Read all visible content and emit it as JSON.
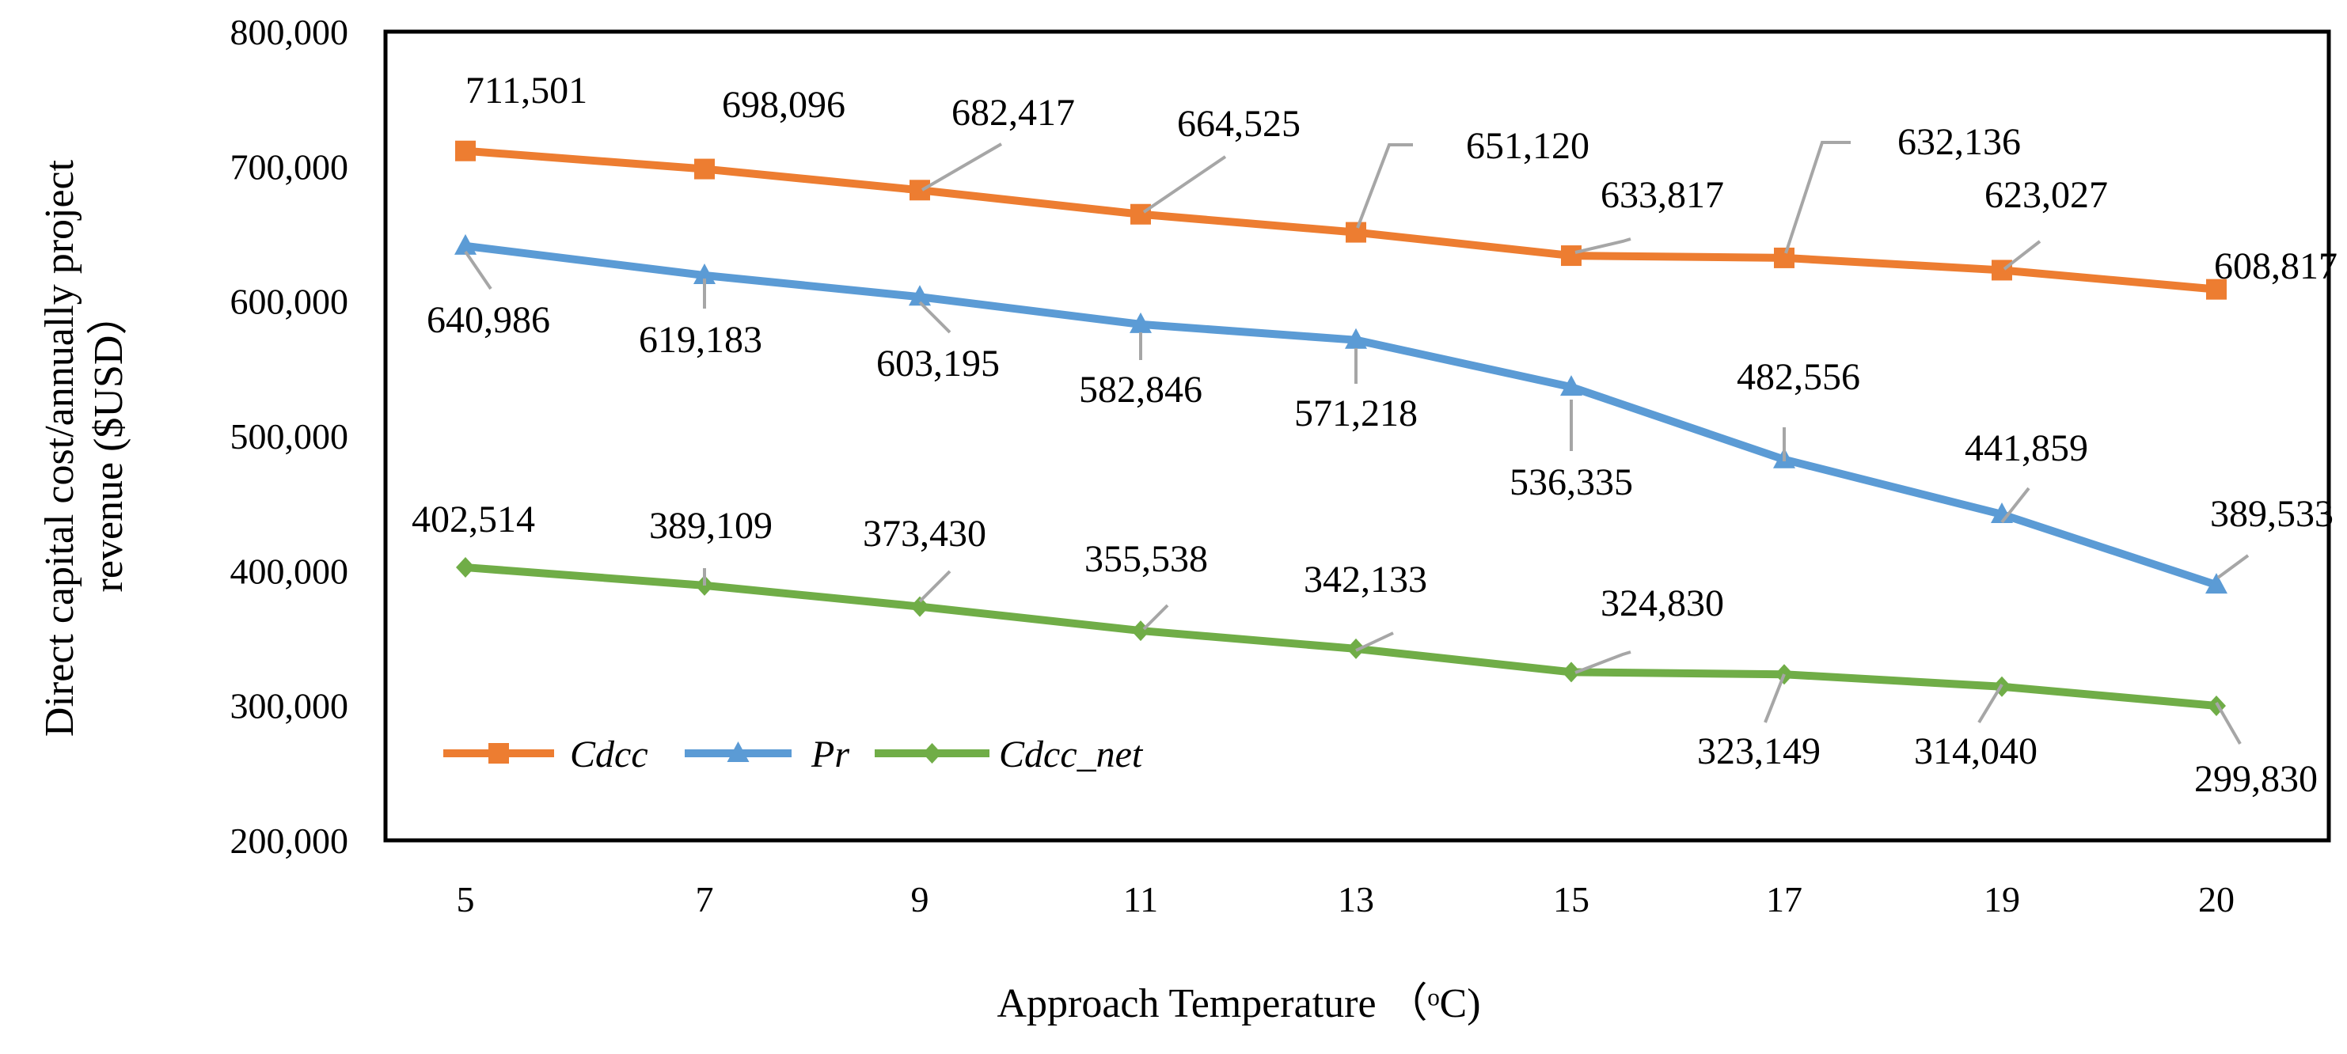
{
  "chart_data": {
    "type": "line",
    "title": "",
    "xlabel": "Approach Temperature （ᵒC)",
    "ylabel": "Direct capital cost/annually project revenue ($USD）",
    "ylim": [
      200000,
      800000
    ],
    "yticks": [
      "200,000",
      "300,000",
      "400,000",
      "500,000",
      "600,000",
      "700,000",
      "800,000"
    ],
    "categories": [
      "5",
      "7",
      "9",
      "11",
      "13",
      "15",
      "17",
      "19",
      "20"
    ],
    "legend_position": "bottom-left",
    "grid": false,
    "series": [
      {
        "name": "Cdcc",
        "color": "#ED7D31",
        "marker": "square",
        "values": [
          711501,
          698096,
          682417,
          664525,
          651120,
          633817,
          632136,
          623027,
          608817
        ],
        "labels": [
          "711,501",
          "698,096",
          "682,417",
          "664,525",
          "651,120",
          "633,817",
          "632,136",
          "623,027",
          "608,817"
        ]
      },
      {
        "name": "Pr",
        "color": "#5B9BD5",
        "marker": "triangle",
        "values": [
          640986,
          619183,
          603195,
          582846,
          571218,
          536335,
          482556,
          441859,
          389533
        ],
        "labels": [
          "640,986",
          "619,183",
          "603,195",
          "582,846",
          "571,218",
          "536,335",
          "482,556",
          "441,859",
          "389,533"
        ]
      },
      {
        "name": "Cdcc_net",
        "color": "#70AD47",
        "marker": "diamond",
        "values": [
          402514,
          389109,
          373430,
          355538,
          342133,
          324830,
          323149,
          314040,
          299830
        ],
        "labels": [
          "402,514",
          "389,109",
          "373,430",
          "355,538",
          "342,133",
          "324,830",
          "323,149",
          "314,040",
          "299,830"
        ]
      }
    ]
  }
}
